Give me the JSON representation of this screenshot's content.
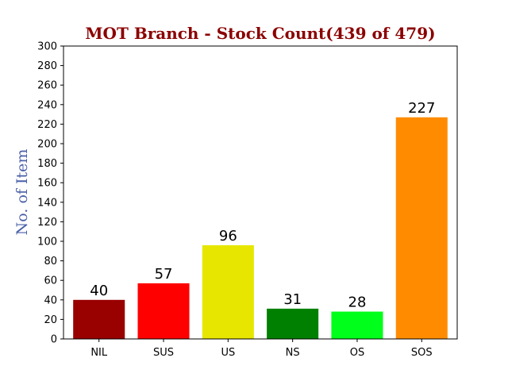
{
  "chart_data": {
    "type": "bar",
    "title": "MOT Branch - Stock Count(439 of 479)",
    "xlabel": "",
    "ylabel": "No. of Item",
    "ylim": [
      0,
      300
    ],
    "yticks": [
      0,
      20,
      40,
      60,
      80,
      100,
      120,
      140,
      160,
      180,
      200,
      220,
      240,
      260,
      280,
      300
    ],
    "categories": [
      "NIL",
      "SUS",
      "US",
      "NS",
      "OS",
      "SOS"
    ],
    "values": [
      40,
      57,
      96,
      31,
      28,
      227
    ],
    "colors": [
      "#990000",
      "#ff0000",
      "#e6e600",
      "#008000",
      "#00ff1a",
      "#ff8c00"
    ],
    "grid": false,
    "legend": false
  }
}
